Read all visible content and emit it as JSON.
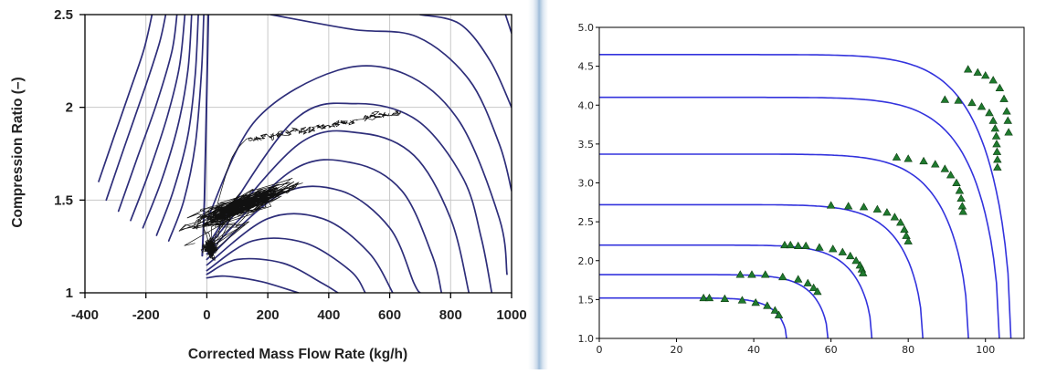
{
  "chart_data": [
    {
      "type": "line",
      "title": "",
      "xlabel": "Corrected Mass Flow Rate (kg/h)",
      "ylabel": "Compression Ratio (–)",
      "xlim": [
        -400,
        1000
      ],
      "ylim": [
        1,
        2.5
      ],
      "x_ticks": [
        -400,
        -200,
        0,
        200,
        400,
        600,
        800,
        1000
      ],
      "y_ticks": [
        1,
        1.5,
        2,
        2.5
      ],
      "x_tick_labels": [
        "-400",
        "-200",
        "0",
        "200",
        "400",
        "600",
        "800",
        "1000"
      ],
      "y_tick_labels": [
        "1",
        "1.5",
        "2",
        "2.5"
      ],
      "grid": true,
      "colors": {
        "map_curves": "#2e2e7a",
        "measured_trace": "#111111",
        "grid": "#c8c8c8"
      },
      "series": [
        {
          "kind": "negative_flow_curve",
          "points": [
            [
              -355,
              1.6
            ],
            [
              -305,
              1.84
            ],
            [
              -250,
              2.1
            ],
            [
              -205,
              2.32
            ],
            [
              -180,
              2.5
            ]
          ]
        },
        {
          "kind": "negative_flow_curve",
          "points": [
            [
              -330,
              1.5
            ],
            [
              -270,
              1.79
            ],
            [
              -200,
              2.12
            ],
            [
              -155,
              2.35
            ],
            [
              -135,
              2.5
            ]
          ]
        },
        {
          "kind": "negative_flow_curve",
          "points": [
            [
              -290,
              1.44
            ],
            [
              -230,
              1.72
            ],
            [
              -165,
              2.02
            ],
            [
              -115,
              2.3
            ],
            [
              -98,
              2.5
            ]
          ]
        },
        {
          "kind": "negative_flow_curve",
          "points": [
            [
              -250,
              1.39
            ],
            [
              -190,
              1.65
            ],
            [
              -130,
              1.95
            ],
            [
              -90,
              2.22
            ],
            [
              -72,
              2.5
            ]
          ]
        },
        {
          "kind": "negative_flow_curve",
          "points": [
            [
              -210,
              1.35
            ],
            [
              -150,
              1.6
            ],
            [
              -95,
              1.9
            ],
            [
              -62,
              2.2
            ],
            [
              -50,
              2.5
            ]
          ]
        },
        {
          "kind": "negative_flow_curve",
          "points": [
            [
              -165,
              1.31
            ],
            [
              -110,
              1.55
            ],
            [
              -62,
              1.85
            ],
            [
              -38,
              2.18
            ],
            [
              -28,
              2.5
            ]
          ]
        },
        {
          "kind": "negative_flow_curve",
          "points": [
            [
              -125,
              1.28
            ],
            [
              -75,
              1.5
            ],
            [
              -38,
              1.8
            ],
            [
              -18,
              2.18
            ],
            [
              -10,
              2.5
            ]
          ]
        },
        {
          "kind": "speed_line",
          "points": [
            [
              0,
              1.08
            ],
            [
              60,
              1.09
            ],
            [
              180,
              1.06
            ],
            [
              300,
              1.0
            ]
          ]
        },
        {
          "kind": "speed_line",
          "points": [
            [
              0,
              1.1
            ],
            [
              100,
              1.18
            ],
            [
              250,
              1.16
            ],
            [
              380,
              1.05
            ],
            [
              430,
              1.0
            ]
          ]
        },
        {
          "kind": "speed_line",
          "points": [
            [
              0,
              1.12
            ],
            [
              150,
              1.28
            ],
            [
              320,
              1.27
            ],
            [
              470,
              1.12
            ],
            [
              520,
              1.0
            ]
          ]
        },
        {
          "kind": "speed_line",
          "points": [
            [
              0,
              1.15
            ],
            [
              200,
              1.4
            ],
            [
              380,
              1.4
            ],
            [
              530,
              1.22
            ],
            [
              610,
              1.0
            ]
          ]
        },
        {
          "kind": "speed_line",
          "points": [
            [
              0,
              1.18
            ],
            [
              240,
              1.53
            ],
            [
              440,
              1.55
            ],
            [
              600,
              1.35
            ],
            [
              680,
              1.05
            ],
            [
              700,
              1.0
            ]
          ]
        },
        {
          "kind": "speed_line",
          "points": [
            [
              0,
              1.21
            ],
            [
              280,
              1.66
            ],
            [
              480,
              1.7
            ],
            [
              640,
              1.55
            ],
            [
              740,
              1.2
            ],
            [
              770,
              1.0
            ]
          ]
        },
        {
          "kind": "speed_line",
          "points": [
            [
              0,
              1.24
            ],
            [
              300,
              1.8
            ],
            [
              510,
              1.86
            ],
            [
              680,
              1.74
            ],
            [
              800,
              1.4
            ],
            [
              860,
              1.0
            ]
          ]
        },
        {
          "kind": "speed_line",
          "points": [
            [
              0,
              1.25
            ],
            [
              280,
              1.92
            ],
            [
              490,
              2.02
            ],
            [
              690,
              1.93
            ],
            [
              840,
              1.62
            ],
            [
              900,
              1.3
            ],
            [
              935,
              1.0
            ]
          ]
        },
        {
          "kind": "speed_line",
          "points": [
            [
              2,
              1.4
            ],
            [
              160,
              1.93
            ],
            [
              430,
              2.2
            ],
            [
              650,
              2.18
            ],
            [
              830,
              1.92
            ],
            [
              960,
              1.4
            ],
            [
              985,
              1.1
            ]
          ]
        },
        {
          "kind": "speed_line",
          "points": [
            [
              210,
              2.5
            ],
            [
              480,
              2.42
            ],
            [
              690,
              2.38
            ],
            [
              860,
              2.15
            ],
            [
              960,
              1.8
            ],
            [
              1000,
              1.55
            ]
          ]
        },
        {
          "kind": "speed_line",
          "points": [
            [
              700,
              2.5
            ],
            [
              830,
              2.45
            ],
            [
              930,
              2.25
            ],
            [
              1000,
              2.0
            ]
          ]
        },
        {
          "kind": "speed_line",
          "points": [
            [
              980,
              2.5
            ],
            [
              1000,
              2.4
            ]
          ]
        },
        {
          "kind": "surge_line",
          "points": [
            [
              -15,
              1.2
            ],
            [
              -8,
              1.5
            ],
            [
              -2,
              1.95
            ],
            [
              5,
              2.5
            ]
          ]
        }
      ]
    },
    {
      "type": "line",
      "title": "",
      "xlabel": "",
      "ylabel": "",
      "xlim": [
        0,
        110
      ],
      "ylim": [
        1.0,
        5.0
      ],
      "x_ticks": [
        0,
        20,
        40,
        60,
        80,
        100
      ],
      "y_ticks": [
        1.0,
        1.5,
        2.0,
        2.5,
        3.0,
        3.5,
        4.0,
        4.5,
        5.0
      ],
      "x_tick_labels": [
        "0",
        "20",
        "40",
        "60",
        "80",
        "100"
      ],
      "y_tick_labels": [
        "1.0",
        "1.5",
        "2.0",
        "2.5",
        "3.0",
        "3.5",
        "4.0",
        "4.5",
        "5.0"
      ],
      "grid": false,
      "colors": {
        "curves": "#3333dd",
        "markers": "#1f7a2e",
        "marker_edge": "#0d3d12"
      },
      "series": [
        {
          "level": 1.52,
          "choke_x": 48.5,
          "markers": [
            [
              27,
              1.52
            ],
            [
              28.5,
              1.52
            ],
            [
              32.5,
              1.51
            ],
            [
              37,
              1.49
            ],
            [
              40.5,
              1.46
            ],
            [
              43.5,
              1.42
            ],
            [
              45.5,
              1.36
            ],
            [
              46.5,
              1.3
            ]
          ]
        },
        {
          "level": 1.82,
          "choke_x": 59.2,
          "markers": [
            [
              36.5,
              1.82
            ],
            [
              39.5,
              1.82
            ],
            [
              43,
              1.82
            ],
            [
              47.5,
              1.79
            ],
            [
              51.5,
              1.76
            ],
            [
              54,
              1.71
            ],
            [
              55.5,
              1.65
            ],
            [
              56.5,
              1.6
            ]
          ]
        },
        {
          "level": 2.2,
          "choke_x": 70.6,
          "markers": [
            [
              48,
              2.2
            ],
            [
              49.5,
              2.2
            ],
            [
              51.5,
              2.19
            ],
            [
              53.5,
              2.19
            ],
            [
              57,
              2.17
            ],
            [
              60.5,
              2.15
            ],
            [
              63,
              2.11
            ],
            [
              65,
              2.06
            ],
            [
              66.5,
              2.0
            ],
            [
              67.5,
              1.94
            ],
            [
              68,
              1.89
            ],
            [
              68.3,
              1.84
            ]
          ]
        },
        {
          "level": 2.72,
          "choke_x": 83.8,
          "markers": [
            [
              60,
              2.71
            ],
            [
              64.5,
              2.7
            ],
            [
              68.5,
              2.69
            ],
            [
              72,
              2.66
            ],
            [
              74.5,
              2.62
            ],
            [
              76.5,
              2.56
            ],
            [
              78,
              2.49
            ],
            [
              79,
              2.4
            ],
            [
              79.5,
              2.32
            ],
            [
              80,
              2.25
            ]
          ]
        },
        {
          "level": 3.37,
          "choke_x": 95.6,
          "markers": [
            [
              77,
              3.33
            ],
            [
              80,
              3.31
            ],
            [
              84,
              3.28
            ],
            [
              87,
              3.24
            ],
            [
              89.5,
              3.18
            ],
            [
              91,
              3.1
            ],
            [
              92.5,
              3.0
            ],
            [
              93.3,
              2.9
            ],
            [
              93.7,
              2.8
            ],
            [
              94,
              2.7
            ],
            [
              94.2,
              2.63
            ]
          ]
        },
        {
          "level": 4.1,
          "choke_x": 103.6,
          "markers": [
            [
              89.5,
              4.07
            ],
            [
              93,
              4.06
            ],
            [
              96.5,
              4.03
            ],
            [
              99,
              3.98
            ],
            [
              101,
              3.9
            ],
            [
              102,
              3.8
            ],
            [
              102.5,
              3.7
            ],
            [
              102.8,
              3.6
            ],
            [
              102.9,
              3.5
            ],
            [
              103,
              3.4
            ],
            [
              103.1,
              3.3
            ],
            [
              103.1,
              3.2
            ]
          ]
        },
        {
          "level": 4.65,
          "choke_x": 106.6,
          "markers": [
            [
              95.5,
              4.46
            ],
            [
              98,
              4.42
            ],
            [
              100,
              4.38
            ],
            [
              102,
              4.32
            ],
            [
              103.7,
              4.22
            ],
            [
              104.8,
              4.08
            ],
            [
              105.5,
              3.92
            ],
            [
              105.8,
              3.8
            ],
            [
              106,
              3.65
            ]
          ]
        }
      ]
    }
  ]
}
